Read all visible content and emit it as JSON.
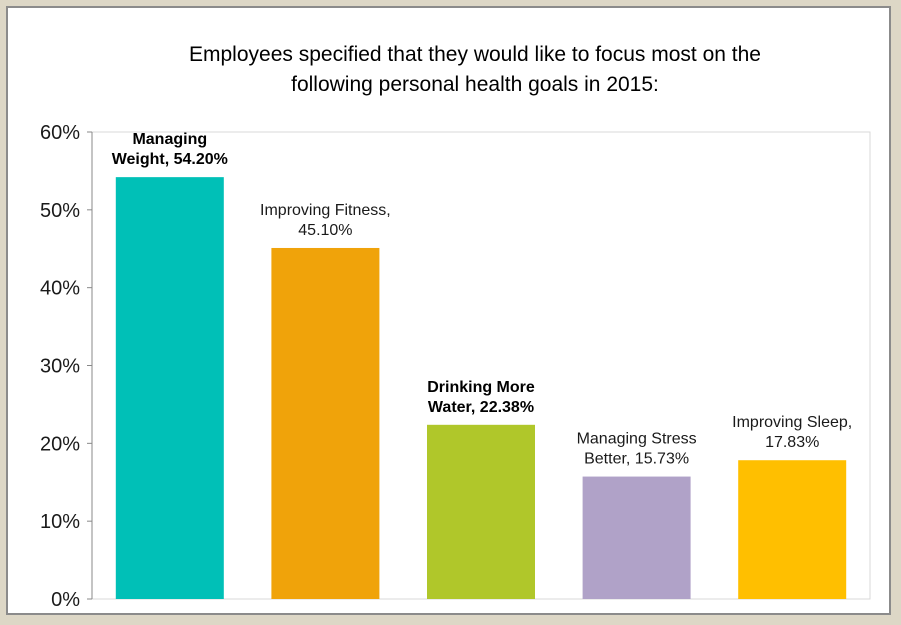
{
  "chart_data": {
    "type": "bar",
    "title_lines": [
      "Employees specified that they would like to focus most on the",
      "following personal health goals in 2015:"
    ],
    "xlabel": "",
    "ylabel": "",
    "ylim": [
      0,
      60
    ],
    "y_ticks": [
      "0%",
      "10%",
      "20%",
      "30%",
      "40%",
      "50%",
      "60%"
    ],
    "categories": [
      "Managing Weight",
      "Improving Fitness",
      "Drinking More Water",
      "Managing Stress Better",
      "Improving Sleep"
    ],
    "values": [
      54.2,
      45.1,
      22.38,
      15.73,
      17.83
    ],
    "colors": [
      "#00c0b7",
      "#f0a30a",
      "#b0c72a",
      "#b0a2c8",
      "#ffbf00"
    ],
    "data_labels": [
      {
        "lines": [
          "Managing",
          "Weight, 54.20%"
        ],
        "bold": true
      },
      {
        "lines": [
          "Improving Fitness,",
          "45.10%"
        ],
        "bold": false
      },
      {
        "lines": [
          "Drinking More",
          "Water, 22.38%"
        ],
        "bold": true
      },
      {
        "lines": [
          "Managing Stress",
          "Better, 15.73%"
        ],
        "bold": false
      },
      {
        "lines": [
          "Improving Sleep,",
          "17.83%"
        ],
        "bold": false
      }
    ],
    "gridlines": false,
    "legend": "none"
  }
}
